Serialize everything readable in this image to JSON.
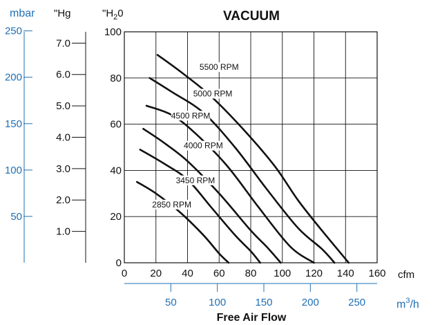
{
  "chart_data": {
    "type": "line",
    "title": "VACUUM",
    "xlabel": "Free Air Flow",
    "x_axis_primary": {
      "unit": "cfm",
      "range": [
        0,
        160
      ],
      "ticks": [
        "0",
        "20",
        "40",
        "60",
        "80",
        "100",
        "120",
        "140",
        "160"
      ]
    },
    "x_axis_secondary": {
      "unit": "m³/h",
      "unit_base": "m",
      "unit_sup": "3",
      "unit_suffix": "/h",
      "range": [
        0,
        271.8
      ],
      "ticks": [
        "50",
        "100",
        "150",
        "200",
        "250"
      ]
    },
    "y_axis_primary": {
      "unit": "\"H₂0",
      "unit_prefix": "\"H",
      "unit_sub": "2",
      "unit_suffix": "0",
      "range": [
        0,
        100
      ],
      "ticks": [
        "0",
        "20",
        "40",
        "60",
        "80",
        "100"
      ]
    },
    "y_axis_hg": {
      "unit": "\"Hg",
      "range": [
        0,
        7.36
      ],
      "ticks": [
        "1.0",
        "2.0",
        "3.0",
        "4.0",
        "5.0",
        "6.0",
        "7.0"
      ]
    },
    "y_axis_mbar": {
      "unit": "mbar",
      "range": [
        0,
        249
      ],
      "ticks": [
        "50",
        "100",
        "150",
        "200",
        "250"
      ]
    },
    "grid": true,
    "series": [
      {
        "name": "5500 RPM",
        "x": [
          21,
          37,
          55,
          75,
          95,
          110,
          125,
          142
        ],
        "y": [
          90,
          82,
          72,
          58,
          42,
          27,
          14,
          0
        ]
      },
      {
        "name": "5000 RPM",
        "x": [
          16,
          30,
          50,
          70,
          90,
          110,
          125,
          133
        ],
        "y": [
          80,
          74,
          65,
          50,
          32,
          15,
          6,
          0
        ]
      },
      {
        "name": "4500 RPM",
        "x": [
          14,
          30,
          45,
          65,
          85,
          105,
          120
        ],
        "y": [
          68,
          64,
          56,
          42,
          24,
          7,
          0
        ]
      },
      {
        "name": "4000 RPM",
        "x": [
          12,
          25,
          40,
          60,
          80,
          90,
          99
        ],
        "y": [
          58,
          52,
          44,
          30,
          14,
          7,
          0
        ]
      },
      {
        "name": "3450 RPM",
        "x": [
          10,
          25,
          40,
          55,
          70,
          80,
          86
        ],
        "y": [
          49,
          43,
          36,
          24,
          12,
          5,
          0
        ]
      },
      {
        "name": "2850 RPM",
        "x": [
          8,
          20,
          35,
          50,
          60,
          66
        ],
        "y": [
          35,
          30,
          22,
          12,
          4,
          0
        ]
      }
    ],
    "curve_labels": [
      {
        "text": "5500 RPM",
        "x": 60,
        "y": 83.5
      },
      {
        "text": "5000 RPM",
        "x": 56,
        "y": 72
      },
      {
        "text": "4500 RPM",
        "x": 42,
        "y": 62.5
      },
      {
        "text": "4000 RPM",
        "x": 50,
        "y": 49.5
      },
      {
        "text": "3450 RPM",
        "x": 45,
        "y": 34.5
      },
      {
        "text": "2850 RPM",
        "x": 30,
        "y": 24
      }
    ],
    "colors": {
      "curves": "#111111",
      "grid": "#111111",
      "metric_axes": "#1f6fb4"
    }
  }
}
